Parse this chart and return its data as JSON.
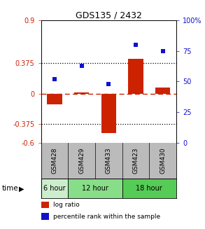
{
  "title": "GDS135 / 2432",
  "samples": [
    "GSM428",
    "GSM429",
    "GSM433",
    "GSM423",
    "GSM430"
  ],
  "log_ratio": [
    -0.13,
    0.02,
    -0.48,
    0.43,
    0.08
  ],
  "percentile_rank": [
    52,
    63,
    48,
    80,
    75
  ],
  "ylim_left": [
    -0.6,
    0.9
  ],
  "ylim_right": [
    0,
    100
  ],
  "yticks_left": [
    -0.6,
    -0.375,
    0,
    0.375,
    0.9
  ],
  "yticks_left_labels": [
    "-0.6",
    "-0.375",
    "0",
    "0.375",
    "0.9"
  ],
  "yticks_right": [
    0,
    25,
    50,
    75,
    100
  ],
  "yticks_right_labels": [
    "0",
    "25",
    "50",
    "75",
    "100%"
  ],
  "hlines": [
    0.375,
    -0.375
  ],
  "log_ratio_color": "#CC2200",
  "percentile_color": "#1111CC",
  "gsm_bg_color": "#BBBBBB",
  "group_info": [
    {
      "start": 0,
      "end": 0,
      "color": "#CCEECC",
      "label": "6 hour"
    },
    {
      "start": 1,
      "end": 2,
      "color": "#88DD88",
      "label": "12 hour"
    },
    {
      "start": 3,
      "end": 4,
      "color": "#55CC55",
      "label": "18 hour"
    }
  ],
  "time_label": "time",
  "legend_items": [
    {
      "color": "#CC2200",
      "label": "log ratio"
    },
    {
      "color": "#1111CC",
      "label": "percentile rank within the sample"
    }
  ]
}
